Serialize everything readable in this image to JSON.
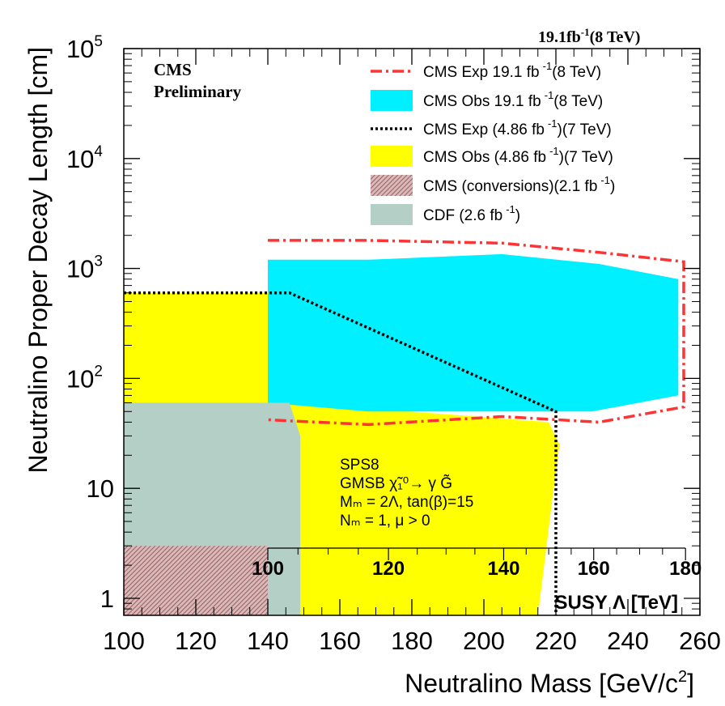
{
  "chart_data": {
    "type": "area",
    "xlabel": "Neutralino Mass [GeV/c",
    "xlabel_sup": "2",
    "xlabel_close": "]",
    "ylabel": "Neutralino Proper Decay Length [cm]",
    "x_scale": "linear",
    "y_scale": "log",
    "xlim": [
      100,
      260
    ],
    "ylim": [
      0.7,
      100000
    ],
    "x_ticks": [
      100,
      120,
      140,
      160,
      180,
      200,
      220,
      240,
      260
    ],
    "y_ticks": [
      {
        "value": 1,
        "base": "1",
        "exp": ""
      },
      {
        "value": 10,
        "base": "10",
        "exp": ""
      },
      {
        "value": 100,
        "base": "10",
        "exp": "2"
      },
      {
        "value": 1000,
        "base": "10",
        "exp": "3"
      },
      {
        "value": 10000,
        "base": "10",
        "exp": "4"
      },
      {
        "value": 100000,
        "base": "10",
        "exp": "5"
      }
    ],
    "top_label": "19.1fb",
    "top_label_sup": "-1",
    "top_label_tail": "(8 TeV)",
    "cms_label_1": "CMS",
    "cms_label_2": "Preliminary",
    "secondary_axis": {
      "title": "SUSY Λ [TeV]",
      "ticks": [
        100,
        120,
        140,
        160,
        180
      ],
      "mass_at_tick": [
        140,
        173.5,
        205.5,
        230.5,
        256
      ]
    },
    "annotation": {
      "line1": "SPS8",
      "line2": "GMSB χ̃₁⁰→ γ G̃",
      "line3": "Mₘ = 2Λ, tan(β)=15",
      "line4": "Nₘ = 1, μ > 0"
    },
    "series": [
      {
        "name": "CMS Exp  19.1 fb⁻¹(8 TeV)",
        "legend_text": "CMS Exp  19.1 fb",
        "legend_sup": "-1",
        "legend_tail": "(8 TeV)",
        "style": "dash-dot-line",
        "color": "#ff3333",
        "x": [
          140,
          168,
          205,
          232,
          255.5,
          255.5,
          232,
          205,
          168,
          140
        ],
        "y": [
          1800,
          1800,
          1700,
          1400,
          1150,
          55,
          40,
          45,
          38,
          42
        ]
      },
      {
        "name": "CMS Obs  19.1 fb⁻¹(8 TeV)",
        "legend_text": "CMS Obs  19.1 fb",
        "legend_sup": "-1",
        "legend_tail": "(8 TeV)",
        "style": "filled",
        "color": "#00f0ff",
        "x": [
          140,
          168,
          205,
          232,
          254,
          254,
          230,
          205,
          168,
          140
        ],
        "y": [
          1200,
          1200,
          1350,
          1100,
          800,
          70,
          50,
          50,
          50,
          60
        ]
      },
      {
        "name": "CMS Exp  (4.86 fb⁻¹)(7 TeV)",
        "legend_text": "CMS Exp  (4.86 fb",
        "legend_sup": "-1",
        "legend_tail": ")(7 TeV)",
        "style": "dotted-line",
        "color": "#000000",
        "x": [
          100,
          146,
          220,
          220
        ],
        "y": [
          600,
          600,
          50,
          0.7
        ]
      },
      {
        "name": "CMS Obs  (4.86 fb⁻¹)(7 TeV)",
        "legend_text": "CMS Obs  (4.86 fb",
        "legend_sup": "-1",
        "legend_tail": ")(7 TeV)",
        "style": "filled",
        "color": "#ffff00",
        "x": [
          100,
          140,
          140,
          148,
          218,
          221,
          219,
          215,
          100
        ],
        "y": [
          600,
          600,
          60,
          60,
          40,
          25,
          8,
          0.7,
          0.7
        ]
      },
      {
        "name": "CMS (conversions)(2.1 fb⁻¹)",
        "legend_text": "CMS (conversions)(2.1 fb",
        "legend_sup": "-1",
        "legend_tail": ")",
        "style": "hatched",
        "color": "#c89a9a",
        "x": [
          100,
          140,
          140,
          100
        ],
        "y": [
          3,
          3,
          0.7,
          0.7
        ]
      },
      {
        "name": "CDF  (2.6 fb⁻¹)",
        "legend_text": "CDF  (2.6 fb",
        "legend_sup": "-1",
        "legend_tail": ")",
        "style": "filled",
        "color": "#b3cfc6",
        "x": [
          100,
          146,
          149,
          149,
          100
        ],
        "y": [
          60,
          60,
          30,
          0.7,
          0.7
        ]
      }
    ]
  }
}
